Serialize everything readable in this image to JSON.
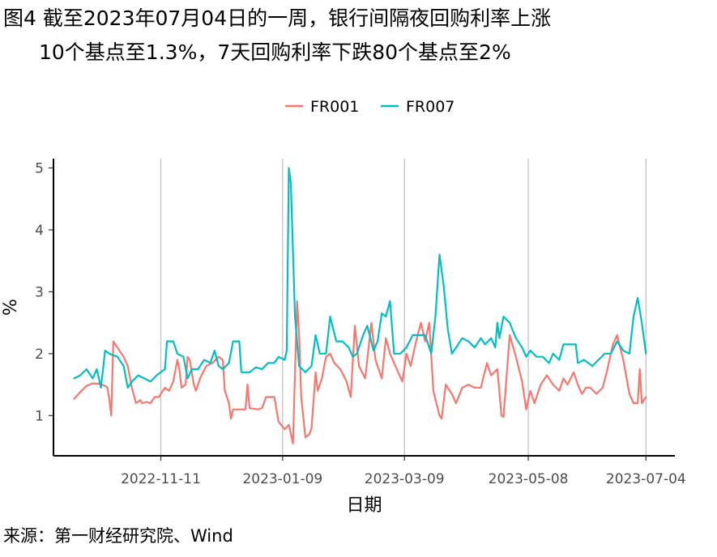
{
  "title_line1": "图4  截至2023年07月04日的一周，银行间隔夜回购利率上涨",
  "title_line2": "10个基点至1.3%，7天回购利率下跌80个基点至2%",
  "source": "来源：第一财经研究院、Wind",
  "colors": {
    "FR001": "#F8766D",
    "FR007": "#00BFC4",
    "grid": "#bdbdbd",
    "axis": "#000000"
  },
  "chart_data": {
    "type": "line",
    "title": "",
    "xlabel": "日期",
    "ylabel": "%",
    "ylim": [
      0.35,
      5.15
    ],
    "yticks": [
      1,
      2,
      3,
      4,
      5
    ],
    "xlim": [
      "2022-09-20",
      "2023-07-18"
    ],
    "xticks": [
      "2022-11-11",
      "2023-01-09",
      "2023-03-09",
      "2023-05-08",
      "2023-07-04"
    ],
    "grid": "vertical major lines only",
    "legend_position": "top",
    "series": [
      {
        "name": "FR001",
        "points": [
          [
            "2022-09-30",
            1.27
          ],
          [
            "2022-10-03",
            1.38
          ],
          [
            "2022-10-06",
            1.48
          ],
          [
            "2022-10-09",
            1.52
          ],
          [
            "2022-10-13",
            1.51
          ],
          [
            "2022-10-16",
            1.46
          ],
          [
            "2022-10-17",
            1.28
          ],
          [
            "2022-10-18",
            1.0
          ],
          [
            "2022-10-19",
            2.2
          ],
          [
            "2022-10-21",
            2.1
          ],
          [
            "2022-10-24",
            1.95
          ],
          [
            "2022-10-26",
            1.8
          ],
          [
            "2022-10-28",
            1.45
          ],
          [
            "2022-10-30",
            1.2
          ],
          [
            "2022-11-01",
            1.25
          ],
          [
            "2022-11-02",
            1.2
          ],
          [
            "2022-11-04",
            1.22
          ],
          [
            "2022-11-06",
            1.2
          ],
          [
            "2022-11-08",
            1.3
          ],
          [
            "2022-11-10",
            1.3
          ],
          [
            "2022-11-13",
            1.45
          ],
          [
            "2022-11-15",
            1.4
          ],
          [
            "2022-11-17",
            1.55
          ],
          [
            "2022-11-19",
            1.9
          ],
          [
            "2022-11-20",
            1.75
          ],
          [
            "2022-11-21",
            1.45
          ],
          [
            "2022-11-23",
            1.5
          ],
          [
            "2022-11-24",
            1.95
          ],
          [
            "2022-11-25",
            1.9
          ],
          [
            "2022-11-27",
            1.5
          ],
          [
            "2022-11-28",
            1.4
          ],
          [
            "2022-11-30",
            1.6
          ],
          [
            "2022-12-03",
            1.8
          ],
          [
            "2022-12-06",
            1.85
          ],
          [
            "2022-12-09",
            1.95
          ],
          [
            "2022-12-11",
            1.9
          ],
          [
            "2022-12-12",
            1.4
          ],
          [
            "2022-12-14",
            1.2
          ],
          [
            "2022-12-15",
            0.95
          ],
          [
            "2022-12-16",
            1.1
          ],
          [
            "2022-12-20",
            1.1
          ],
          [
            "2022-12-22",
            1.1
          ],
          [
            "2022-12-23",
            1.5
          ],
          [
            "2022-12-24",
            1.12
          ],
          [
            "2022-12-28",
            1.1
          ],
          [
            "2022-12-30",
            1.12
          ],
          [
            "2023-01-01",
            1.3
          ],
          [
            "2023-01-05",
            1.3
          ],
          [
            "2023-01-07",
            0.9
          ],
          [
            "2023-01-10",
            0.78
          ],
          [
            "2023-01-12",
            0.85
          ],
          [
            "2023-01-14",
            0.55
          ],
          [
            "2023-01-16",
            2.85
          ],
          [
            "2023-01-17",
            2.3
          ],
          [
            "2023-01-18",
            1.3
          ],
          [
            "2023-01-20",
            0.65
          ],
          [
            "2023-01-22",
            0.7
          ],
          [
            "2023-01-23",
            0.8
          ],
          [
            "2023-01-25",
            1.7
          ],
          [
            "2023-01-26",
            1.4
          ],
          [
            "2023-01-28",
            1.6
          ],
          [
            "2023-01-30",
            1.95
          ],
          [
            "2023-02-01",
            2.0
          ],
          [
            "2023-02-03",
            1.85
          ],
          [
            "2023-02-06",
            1.75
          ],
          [
            "2023-02-09",
            1.55
          ],
          [
            "2023-02-11",
            1.3
          ],
          [
            "2023-02-13",
            2.45
          ],
          [
            "2023-02-15",
            1.8
          ],
          [
            "2023-02-18",
            1.6
          ],
          [
            "2023-02-21",
            2.5
          ],
          [
            "2023-02-23",
            1.9
          ],
          [
            "2023-02-26",
            1.6
          ],
          [
            "2023-02-28",
            2.25
          ],
          [
            "2023-03-02",
            2.0
          ],
          [
            "2023-03-04",
            1.85
          ],
          [
            "2023-03-06",
            1.7
          ],
          [
            "2023-03-08",
            1.55
          ],
          [
            "2023-03-10",
            2.0
          ],
          [
            "2023-03-12",
            1.8
          ],
          [
            "2023-03-15",
            2.25
          ],
          [
            "2023-03-17",
            2.5
          ],
          [
            "2023-03-19",
            2.2
          ],
          [
            "2023-03-21",
            2.5
          ],
          [
            "2023-03-23",
            1.4
          ],
          [
            "2023-03-26",
            1.0
          ],
          [
            "2023-03-27",
            0.95
          ],
          [
            "2023-03-29",
            1.5
          ],
          [
            "2023-04-01",
            1.35
          ],
          [
            "2023-04-03",
            1.2
          ],
          [
            "2023-04-06",
            1.45
          ],
          [
            "2023-04-09",
            1.5
          ],
          [
            "2023-04-12",
            1.45
          ],
          [
            "2023-04-15",
            1.45
          ],
          [
            "2023-04-18",
            1.85
          ],
          [
            "2023-04-20",
            1.65
          ],
          [
            "2023-04-23",
            1.75
          ],
          [
            "2023-04-25",
            1.0
          ],
          [
            "2023-04-26",
            0.98
          ],
          [
            "2023-04-29",
            2.3
          ],
          [
            "2023-05-02",
            1.95
          ],
          [
            "2023-05-05",
            1.55
          ],
          [
            "2023-05-07",
            1.1
          ],
          [
            "2023-05-09",
            1.4
          ],
          [
            "2023-05-11",
            1.2
          ],
          [
            "2023-05-14",
            1.5
          ],
          [
            "2023-05-17",
            1.65
          ],
          [
            "2023-05-20",
            1.5
          ],
          [
            "2023-05-23",
            1.4
          ],
          [
            "2023-05-25",
            1.6
          ],
          [
            "2023-05-27",
            1.5
          ],
          [
            "2023-05-30",
            1.7
          ],
          [
            "2023-06-01",
            1.5
          ],
          [
            "2023-06-03",
            1.35
          ],
          [
            "2023-06-05",
            1.45
          ],
          [
            "2023-06-07",
            1.45
          ],
          [
            "2023-06-10",
            1.35
          ],
          [
            "2023-06-13",
            1.45
          ],
          [
            "2023-06-15",
            1.7
          ],
          [
            "2023-06-18",
            2.15
          ],
          [
            "2023-06-20",
            2.3
          ],
          [
            "2023-06-23",
            1.9
          ],
          [
            "2023-06-26",
            1.35
          ],
          [
            "2023-06-28",
            1.2
          ],
          [
            "2023-06-30",
            1.2
          ],
          [
            "2023-07-01",
            1.75
          ],
          [
            "2023-07-02",
            1.2
          ],
          [
            "2023-07-04",
            1.3
          ]
        ]
      },
      {
        "name": "FR007",
        "points": [
          [
            "2022-09-30",
            1.6
          ],
          [
            "2022-10-03",
            1.65
          ],
          [
            "2022-10-06",
            1.75
          ],
          [
            "2022-10-09",
            1.6
          ],
          [
            "2022-10-11",
            1.75
          ],
          [
            "2022-10-13",
            1.45
          ],
          [
            "2022-10-15",
            2.05
          ],
          [
            "2022-10-17",
            2.0
          ],
          [
            "2022-10-21",
            1.95
          ],
          [
            "2022-10-24",
            1.8
          ],
          [
            "2022-10-26",
            1.45
          ],
          [
            "2022-10-28",
            1.55
          ],
          [
            "2022-10-31",
            1.65
          ],
          [
            "2022-11-03",
            1.6
          ],
          [
            "2022-11-06",
            1.55
          ],
          [
            "2022-11-09",
            1.65
          ],
          [
            "2022-11-11",
            1.7
          ],
          [
            "2022-11-13",
            1.75
          ],
          [
            "2022-11-14",
            2.2
          ],
          [
            "2022-11-17",
            2.2
          ],
          [
            "2022-11-19",
            2.0
          ],
          [
            "2022-11-22",
            1.95
          ],
          [
            "2022-11-24",
            1.6
          ],
          [
            "2022-11-26",
            1.75
          ],
          [
            "2022-11-29",
            1.75
          ],
          [
            "2022-12-02",
            1.9
          ],
          [
            "2022-12-05",
            1.85
          ],
          [
            "2022-12-07",
            2.05
          ],
          [
            "2022-12-09",
            1.8
          ],
          [
            "2022-12-11",
            1.75
          ],
          [
            "2022-12-14",
            1.85
          ],
          [
            "2022-12-16",
            2.2
          ],
          [
            "2022-12-19",
            2.2
          ],
          [
            "2022-12-20",
            1.7
          ],
          [
            "2022-12-24",
            1.7
          ],
          [
            "2022-12-27",
            1.78
          ],
          [
            "2022-12-30",
            1.75
          ],
          [
            "2023-01-02",
            1.85
          ],
          [
            "2023-01-05",
            1.85
          ],
          [
            "2023-01-07",
            1.95
          ],
          [
            "2023-01-10",
            1.9
          ],
          [
            "2023-01-11",
            2.05
          ],
          [
            "2023-01-12",
            5.0
          ],
          [
            "2023-01-13",
            4.75
          ],
          [
            "2023-01-15",
            2.6
          ],
          [
            "2023-01-17",
            1.8
          ],
          [
            "2023-01-20",
            1.7
          ],
          [
            "2023-01-23",
            1.8
          ],
          [
            "2023-01-25",
            2.3
          ],
          [
            "2023-01-27",
            2.0
          ],
          [
            "2023-01-30",
            2.0
          ],
          [
            "2023-02-01",
            2.6
          ],
          [
            "2023-02-04",
            2.2
          ],
          [
            "2023-02-07",
            2.2
          ],
          [
            "2023-02-10",
            2.1
          ],
          [
            "2023-02-12",
            1.95
          ],
          [
            "2023-02-14",
            2.0
          ],
          [
            "2023-02-17",
            2.3
          ],
          [
            "2023-02-19",
            2.45
          ],
          [
            "2023-02-22",
            2.05
          ],
          [
            "2023-02-24",
            2.2
          ],
          [
            "2023-02-26",
            2.65
          ],
          [
            "2023-02-28",
            2.6
          ],
          [
            "2023-03-02",
            2.85
          ],
          [
            "2023-03-04",
            2.0
          ],
          [
            "2023-03-07",
            2.0
          ],
          [
            "2023-03-10",
            2.1
          ],
          [
            "2023-03-13",
            2.3
          ],
          [
            "2023-03-16",
            2.3
          ],
          [
            "2023-03-19",
            2.3
          ],
          [
            "2023-03-22",
            2.0
          ],
          [
            "2023-03-24",
            2.6
          ],
          [
            "2023-03-26",
            3.6
          ],
          [
            "2023-03-28",
            3.1
          ],
          [
            "2023-03-30",
            2.4
          ],
          [
            "2023-04-01",
            2.0
          ],
          [
            "2023-04-03",
            2.1
          ],
          [
            "2023-04-06",
            2.25
          ],
          [
            "2023-04-09",
            2.2
          ],
          [
            "2023-04-12",
            2.1
          ],
          [
            "2023-04-15",
            2.25
          ],
          [
            "2023-04-17",
            2.15
          ],
          [
            "2023-04-20",
            2.25
          ],
          [
            "2023-04-22",
            2.1
          ],
          [
            "2023-04-23",
            2.5
          ],
          [
            "2023-04-24",
            2.25
          ],
          [
            "2023-04-26",
            2.6
          ],
          [
            "2023-04-29",
            2.5
          ],
          [
            "2023-05-02",
            2.25
          ],
          [
            "2023-05-05",
            2.1
          ],
          [
            "2023-05-07",
            1.95
          ],
          [
            "2023-05-09",
            2.05
          ],
          [
            "2023-05-12",
            1.95
          ],
          [
            "2023-05-15",
            1.95
          ],
          [
            "2023-05-18",
            1.85
          ],
          [
            "2023-05-20",
            2.0
          ],
          [
            "2023-05-23",
            1.9
          ],
          [
            "2023-05-25",
            2.15
          ],
          [
            "2023-05-28",
            2.15
          ],
          [
            "2023-05-31",
            2.15
          ],
          [
            "2023-06-01",
            1.85
          ],
          [
            "2023-06-04",
            1.9
          ],
          [
            "2023-06-06",
            1.85
          ],
          [
            "2023-06-08",
            1.8
          ],
          [
            "2023-06-11",
            1.9
          ],
          [
            "2023-06-14",
            2.0
          ],
          [
            "2023-06-17",
            2.0
          ],
          [
            "2023-06-20",
            2.2
          ],
          [
            "2023-06-23",
            2.05
          ],
          [
            "2023-06-26",
            2.0
          ],
          [
            "2023-06-28",
            2.6
          ],
          [
            "2023-06-30",
            2.9
          ],
          [
            "2023-07-02",
            2.5
          ],
          [
            "2023-07-04",
            2.0
          ]
        ]
      }
    ]
  }
}
